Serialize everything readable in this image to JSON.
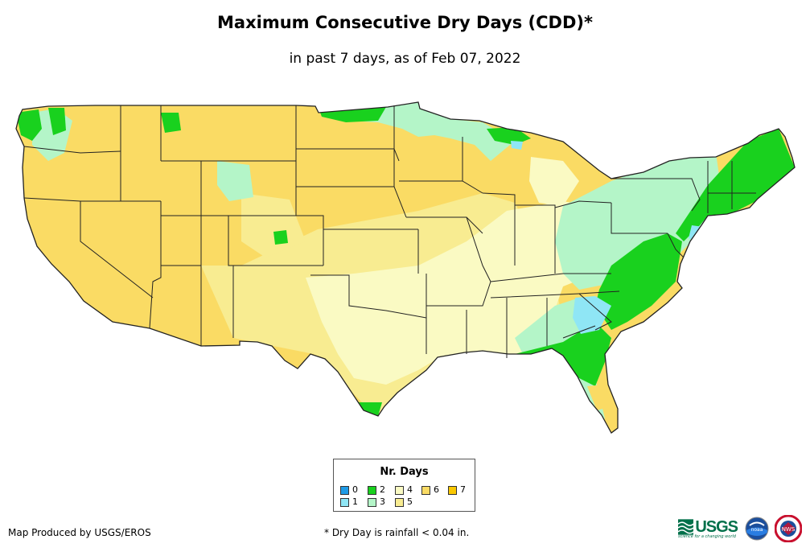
{
  "title": "Maximum Consecutive Dry Days (CDD)*",
  "subtitle": "in past 7 days, as of Feb 07, 2022",
  "legend": {
    "title": "Nr. Days",
    "items": [
      {
        "label": "0",
        "color": "#1e9be6"
      },
      {
        "label": "1",
        "color": "#8fe6f5"
      },
      {
        "label": "2",
        "color": "#19d11e"
      },
      {
        "label": "3",
        "color": "#b4f5c8"
      },
      {
        "label": "4",
        "color": "#fafac3"
      },
      {
        "label": "5",
        "color": "#f8ec91"
      },
      {
        "label": "6",
        "color": "#fadb64"
      },
      {
        "label": "7",
        "color": "#fac800"
      }
    ]
  },
  "credit": "Map Produced by USGS/EROS",
  "footnote": "* Dry Day is rainfall < 0.04 in.",
  "logos": {
    "usgs_text": "USGS",
    "usgs_tagline": "science for a changing world",
    "noaa_text": "noaa",
    "nws_text": "NWS"
  }
}
